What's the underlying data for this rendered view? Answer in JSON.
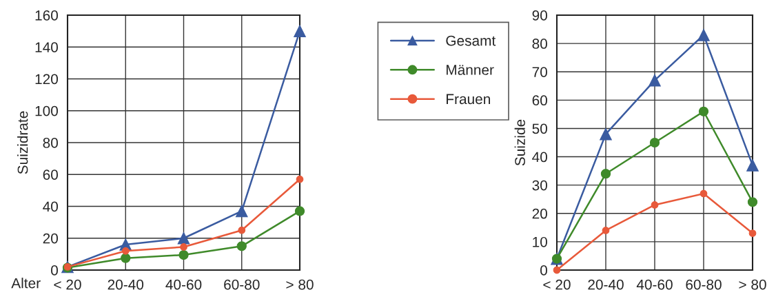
{
  "chart_data": [
    {
      "type": "line",
      "xlabel": "Alter",
      "ylabel": "Suizidrate",
      "categories": [
        "< 20",
        "20-40",
        "40-60",
        "60-80",
        "> 80"
      ],
      "ylim": [
        0,
        160
      ],
      "yticks": [
        0,
        20,
        40,
        60,
        80,
        100,
        120,
        140,
        160
      ],
      "grid": true,
      "legend": "right",
      "series": [
        {
          "name": "Gesamt",
          "color": "#3a5ba0",
          "marker": "triangle",
          "values": [
            2,
            16,
            20,
            37,
            150
          ]
        },
        {
          "name": "Männer",
          "color": "#3f8a2a",
          "marker": "circle",
          "values": [
            1.5,
            7.5,
            9.5,
            15,
            37
          ]
        },
        {
          "name": "Frauen",
          "color": "#e8593a",
          "marker": "circle",
          "values": [
            2,
            12,
            14.5,
            25,
            57
          ]
        }
      ]
    },
    {
      "type": "line",
      "ylabel": "Suizide",
      "categories": [
        "< 20",
        "20-40",
        "40-60",
        "60-80",
        "> 80"
      ],
      "ylim": [
        0,
        90
      ],
      "yticks": [
        0,
        10,
        20,
        30,
        40,
        50,
        60,
        70,
        80,
        90
      ],
      "grid": true,
      "series": [
        {
          "color": "#3a5ba0",
          "marker": "triangle",
          "values": [
            4,
            48,
            67,
            83,
            37
          ]
        },
        {
          "color": "#3f8a2a",
          "marker": "circle",
          "values": [
            4,
            34,
            45,
            56,
            24
          ]
        },
        {
          "color": "#e8593a",
          "marker": "circle",
          "values": [
            0,
            14,
            23,
            27,
            13
          ]
        }
      ]
    }
  ]
}
